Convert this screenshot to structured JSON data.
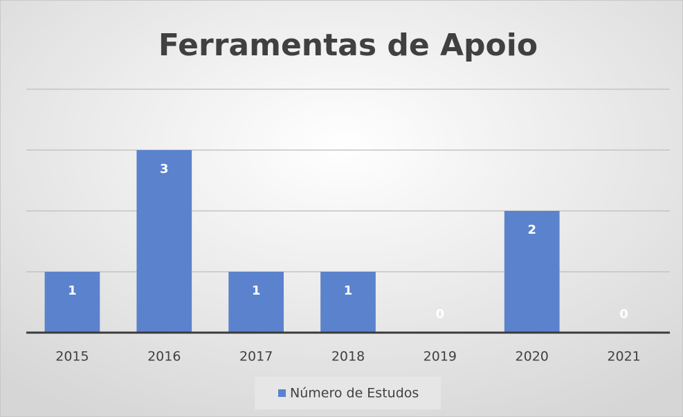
{
  "chart_data": {
    "type": "bar",
    "title": "Ferramentas de Apoio",
    "categories": [
      "2015",
      "2016",
      "2017",
      "2018",
      "2019",
      "2020",
      "2021"
    ],
    "series": [
      {
        "name": "Número de Estudos",
        "color": "#5b82cc",
        "values": [
          1,
          3,
          1,
          1,
          0,
          2,
          0
        ]
      }
    ],
    "ylim": [
      0,
      4
    ],
    "yticks": [
      0,
      1,
      2,
      3,
      4
    ],
    "grid": true,
    "legend": "bottom"
  }
}
